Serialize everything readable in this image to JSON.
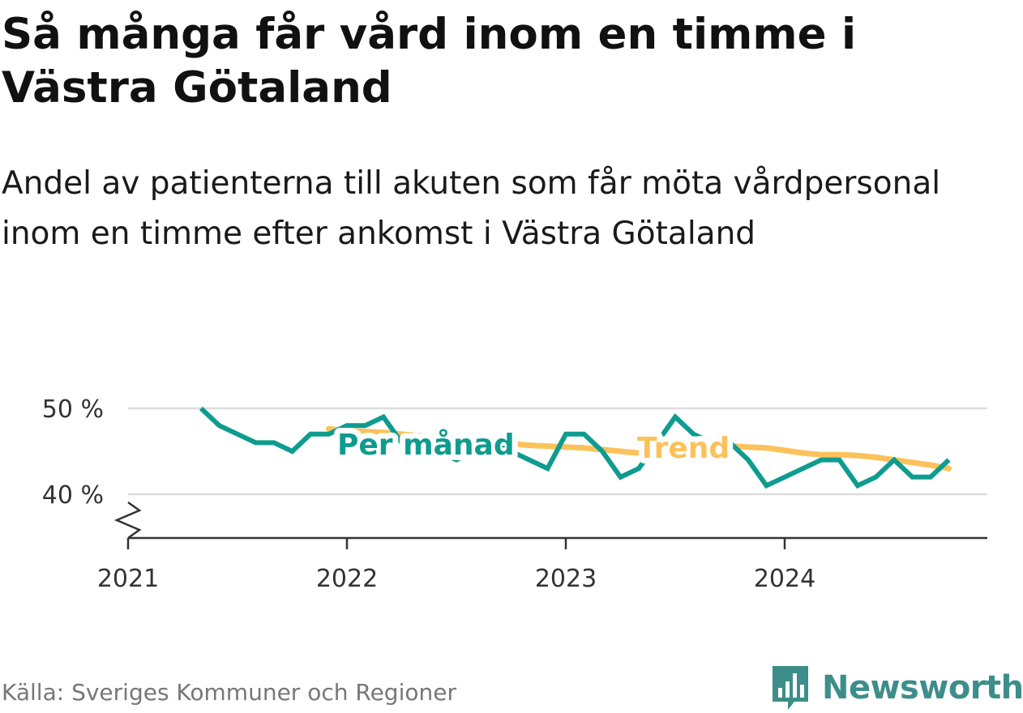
{
  "header": {
    "title": "Så många får vård inom en timme i Västra Götaland",
    "subtitle": "Andel av patienterna till akuten som får möta vårdpersonal inom en timme efter ankomst i Västra Götaland"
  },
  "footer": {
    "source": "Källa: Sveriges Kommuner och Regioner",
    "brand": "Newsworthy"
  },
  "colors": {
    "monthly": "#0e9c8f",
    "trend": "#fbc25b",
    "grid": "#dddddd",
    "axis": "#333333",
    "brand": "#3d8e8a"
  },
  "icons": {
    "logo": "bar-chart-speech-bubble-icon"
  },
  "chart_data": {
    "type": "line",
    "ylim": [
      35,
      52
    ],
    "yticks": [
      40,
      50
    ],
    "ytick_labels": [
      "40 %",
      "50 %"
    ],
    "axis_break": true,
    "xlim": [
      "2021-01",
      "2024-12"
    ],
    "xticks": [
      "2021-01",
      "2022-01",
      "2023-01",
      "2024-01"
    ],
    "xtick_labels": [
      "2021",
      "2022",
      "2023",
      "2024"
    ],
    "grid": true,
    "series": [
      {
        "name": "Per månad",
        "x": [
          "2021-05",
          "2021-06",
          "2021-07",
          "2021-08",
          "2021-09",
          "2021-10",
          "2021-11",
          "2021-12",
          "2022-01",
          "2022-02",
          "2022-03",
          "2022-04",
          "2022-05",
          "2022-06",
          "2022-07",
          "2022-08",
          "2022-09",
          "2022-10",
          "2022-11",
          "2022-12",
          "2023-01",
          "2023-02",
          "2023-03",
          "2023-04",
          "2023-05",
          "2023-06",
          "2023-07",
          "2023-08",
          "2023-09",
          "2023-10",
          "2023-11",
          "2023-12",
          "2024-01",
          "2024-02",
          "2024-03",
          "2024-04",
          "2024-05",
          "2024-06",
          "2024-07",
          "2024-08",
          "2024-09",
          "2024-10"
        ],
        "values": [
          50,
          48,
          47,
          46,
          46,
          45,
          47,
          47,
          48,
          48,
          49,
          46,
          45,
          45,
          44,
          45,
          46,
          45,
          44,
          43,
          47,
          47,
          45,
          42,
          43,
          46,
          49,
          47,
          46,
          46,
          44,
          41,
          42,
          43,
          44,
          44,
          41,
          42,
          44,
          42,
          42,
          44
        ]
      },
      {
        "name": "Trend",
        "x": [
          "2021-12",
          "2022-01",
          "2022-02",
          "2022-03",
          "2022-04",
          "2022-05",
          "2022-06",
          "2022-07",
          "2022-08",
          "2022-09",
          "2022-10",
          "2022-11",
          "2022-12",
          "2023-01",
          "2023-02",
          "2023-03",
          "2023-04",
          "2023-05",
          "2023-06",
          "2023-07",
          "2023-08",
          "2023-09",
          "2023-10",
          "2023-11",
          "2023-12",
          "2024-01",
          "2024-02",
          "2024-03",
          "2024-04",
          "2024-05",
          "2024-06",
          "2024-07",
          "2024-08",
          "2024-09",
          "2024-10"
        ],
        "values": [
          47.6,
          47.4,
          47.3,
          47.2,
          47.0,
          46.8,
          46.6,
          46.4,
          46.2,
          46.0,
          45.9,
          45.7,
          45.6,
          45.5,
          45.4,
          45.2,
          45.0,
          44.8,
          45.0,
          45.3,
          45.5,
          45.6,
          45.6,
          45.5,
          45.4,
          45.1,
          44.8,
          44.6,
          44.6,
          44.5,
          44.3,
          44.0,
          43.7,
          43.4,
          43.0
        ]
      }
    ]
  }
}
